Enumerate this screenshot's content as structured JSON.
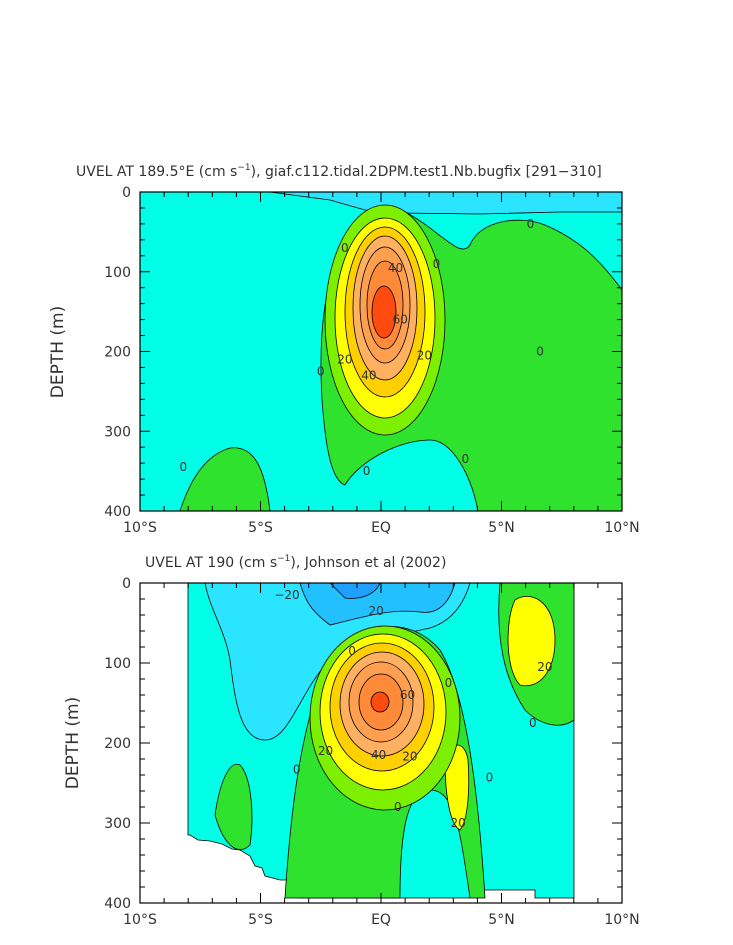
{
  "chart_data": [
    {
      "type": "heatmap",
      "title_prefix": "UVEL AT 189.5°E (cm s",
      "title_exponent": "−1",
      "title_suffix": "), giaf.c112.tidal.2DPM.test1.Nb.bugfix [291−310]",
      "xlabel": "",
      "ylabel": "DEPTH (m)",
      "xlim": [
        -10,
        10
      ],
      "ylim": [
        400,
        0
      ],
      "x_ticks": [
        -10,
        -5,
        0,
        5,
        10
      ],
      "x_tick_labels": [
        "10°S",
        "5°S",
        "EQ",
        "5°N",
        "10°N"
      ],
      "y_ticks": [
        0,
        100,
        200,
        300,
        400
      ],
      "y_tick_labels": [
        "0",
        "100",
        "200",
        "300",
        "400"
      ],
      "core": {
        "lat": 0.0,
        "depth": 150,
        "max_value": 70
      },
      "contour_labels": [
        {
          "text": "0",
          "lat": -1.5,
          "depth": 75
        },
        {
          "text": "40",
          "lat": 0.6,
          "depth": 100
        },
        {
          "text": "0",
          "lat": 2.3,
          "depth": 95
        },
        {
          "text": "0",
          "lat": 6.2,
          "depth": 45
        },
        {
          "text": "60",
          "lat": 0.8,
          "depth": 165
        },
        {
          "text": "20",
          "lat": -1.5,
          "depth": 215
        },
        {
          "text": "40",
          "lat": -0.5,
          "depth": 235
        },
        {
          "text": "20",
          "lat": 1.8,
          "depth": 210
        },
        {
          "text": "0",
          "lat": -2.5,
          "depth": 230
        },
        {
          "text": "0",
          "lat": 6.6,
          "depth": 205
        },
        {
          "text": "0",
          "lat": -8.2,
          "depth": 350
        },
        {
          "text": "0",
          "lat": -0.6,
          "depth": 355
        },
        {
          "text": "0",
          "lat": 3.5,
          "depth": 340
        }
      ]
    },
    {
      "type": "heatmap",
      "title_prefix": "UVEL AT 190 (cm s",
      "title_exponent": "−1",
      "title_suffix": "), Johnson et al (2002)",
      "xlabel": "",
      "ylabel": "DEPTH (m)",
      "xlim": [
        -10,
        10
      ],
      "ylim": [
        400,
        0
      ],
      "data_lat_range": [
        -8,
        8
      ],
      "x_ticks": [
        -10,
        -5,
        0,
        5,
        10
      ],
      "x_tick_labels": [
        "10°S",
        "5°S",
        "EQ",
        "5°N",
        "10°N"
      ],
      "y_ticks": [
        0,
        100,
        200,
        300,
        400
      ],
      "y_tick_labels": [
        "0",
        "100",
        "200",
        "300",
        "400"
      ],
      "core": {
        "lat": 0.0,
        "depth": 150,
        "max_value": 80
      },
      "contour_labels": [
        {
          "text": "−20",
          "lat": -3.9,
          "depth": 20
        },
        {
          "text": "20",
          "lat": -0.2,
          "depth": 40
        },
        {
          "text": "0",
          "lat": -1.2,
          "depth": 90
        },
        {
          "text": "60",
          "lat": 1.1,
          "depth": 145
        },
        {
          "text": "0",
          "lat": 2.8,
          "depth": 130
        },
        {
          "text": "20",
          "lat": 6.8,
          "depth": 110
        },
        {
          "text": "0",
          "lat": 6.3,
          "depth": 180
        },
        {
          "text": "20",
          "lat": -2.3,
          "depth": 215
        },
        {
          "text": "40",
          "lat": -0.1,
          "depth": 220
        },
        {
          "text": "20",
          "lat": 1.2,
          "depth": 222
        },
        {
          "text": "0",
          "lat": -3.5,
          "depth": 238
        },
        {
          "text": "0",
          "lat": 4.5,
          "depth": 248
        },
        {
          "text": "0",
          "lat": 0.7,
          "depth": 285
        },
        {
          "text": "20",
          "lat": 3.2,
          "depth": 305
        }
      ]
    }
  ],
  "colors": {
    "background_light": "#00ffe6",
    "cyan": "#2be4ff",
    "blue_cyan": "#22c0ff",
    "green": "#2ee22e",
    "yellow_green": "#7cf000",
    "yellow": "#ffff00",
    "yellow_orange": "#ffd000",
    "light_orange": "#ffb060",
    "orange": "#ff8a3a",
    "red_orange": "#ff4a10"
  }
}
